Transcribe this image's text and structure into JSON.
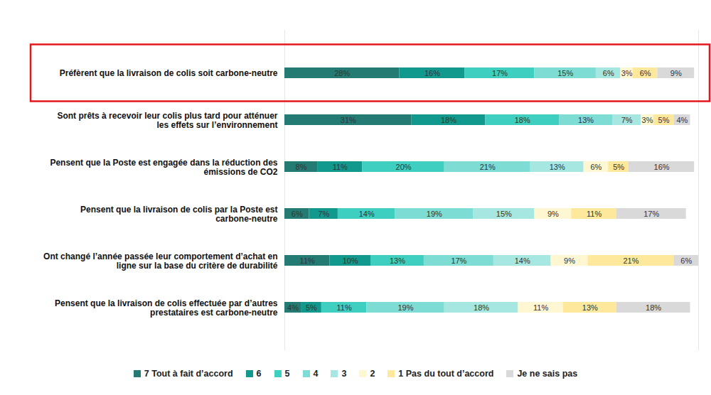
{
  "chart_data": {
    "type": "bar",
    "orientation": "horizontal",
    "stacked": true,
    "data_labels": true,
    "tick_labels": "y",
    "legend": "bottom",
    "categories": [
      "Préfèrent que la livraison de colis soit carbone-neutre",
      "Sont prêts à recevoir leur colis plus tard pour atténuer les effets sur l’environnement",
      "Pensent que la Poste est engagée dans la réduction des émissions de CO2",
      "Pensent que la livraison de colis par la Poste est carbone-neutre",
      "Ont changé l’année passée leur comportement d’achat en ligne sur la base du critère de durabilité",
      "Pensent que la livraison de colis effectuée par d’autres prestataires est carbone-neutre"
    ],
    "xlim": [
      0,
      101
    ],
    "xticks": [],
    "series": [
      {
        "name": "7 Tout à fait d’accord",
        "color": "#237b73",
        "values": [
          28,
          31,
          8,
          6,
          11,
          4
        ],
        "value_labels": [
          "28%",
          "31%",
          "8%",
          "6%",
          "11%",
          "4%"
        ]
      },
      {
        "name": "6",
        "color": "#12998d",
        "values": [
          16,
          18,
          11,
          7,
          10,
          5
        ],
        "value_labels": [
          "16%",
          "18%",
          "11%",
          "7%",
          "10%",
          "5%"
        ]
      },
      {
        "name": "5",
        "color": "#3ecfc0",
        "values": [
          17,
          18,
          20,
          14,
          13,
          11
        ],
        "value_labels": [
          "17%",
          "18%",
          "20%",
          "14%",
          "13%",
          "11%"
        ]
      },
      {
        "name": "4",
        "color": "#7ddcd4",
        "values": [
          15,
          13,
          21,
          19,
          17,
          19
        ],
        "value_labels": [
          "15%",
          "13%",
          "21%",
          "19%",
          "17%",
          "19%"
        ]
      },
      {
        "name": "3",
        "color": "#a6e7e1",
        "values": [
          6,
          7,
          13,
          15,
          14,
          18
        ],
        "value_labels": [
          "6%",
          "7%",
          "13%",
          "15%",
          "14%",
          "18%"
        ]
      },
      {
        "name": "2",
        "color": "#fff6d2",
        "values": [
          3,
          3,
          6,
          9,
          9,
          11
        ],
        "value_labels": [
          "3%",
          "3%",
          "6%",
          "9%",
          "9%",
          "11%"
        ]
      },
      {
        "name": "1 Pas du tout d’accord",
        "color": "#fde89c",
        "values": [
          6,
          5,
          5,
          11,
          21,
          13
        ],
        "value_labels": [
          "6%",
          "5%",
          "5%",
          "11%",
          "21%",
          "13%"
        ]
      },
      {
        "name": "Je ne sais pas",
        "color": "#d9d9d9",
        "values": [
          9,
          4,
          16,
          17,
          6,
          18
        ],
        "value_labels": [
          "9%",
          "4%",
          "16%",
          "17%",
          "6%",
          "18%"
        ]
      }
    ]
  }
}
